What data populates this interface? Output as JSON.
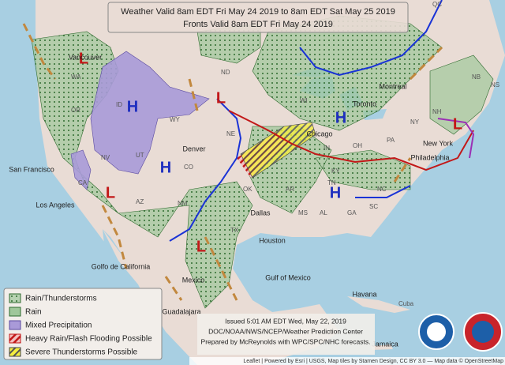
{
  "header": {
    "lines": [
      "Weather Valid 8am EDT Fri May 24 2019 to 8am EDT Sat May 25 2019",
      "Fronts Valid 8am EDT Fri May 24 2019"
    ]
  },
  "legend": {
    "items": [
      "Rain/Thunderstorms",
      "Rain",
      "Mixed Precipitation",
      "Heavy Rain/Flash Flooding Possible",
      "Severe Thunderstorms Possible"
    ]
  },
  "issued": {
    "lines": [
      "Issued 5:01 AM EDT Wed, May 22, 2019",
      "DOC/NOAA/NWS/NCEP/Weather Prediction Center",
      "Prepared by McReynolds with WPC/SPC/NHC forecasts."
    ]
  },
  "pressure_centers": [
    "L",
    "H",
    "L",
    "L",
    "H",
    "L",
    "L",
    "H",
    "H"
  ],
  "places": [
    "Vancouver",
    "WA",
    "OR",
    "ID",
    "NV",
    "CA",
    "UT",
    "San Francisco",
    "Los Angeles",
    "AZ",
    "NM",
    "Denver",
    "CO",
    "WY",
    "ND",
    "NE",
    "OK",
    "TX",
    "Dallas",
    "Houston",
    "AR",
    "MS",
    "AL",
    "GA",
    "TN",
    "KY",
    "IN",
    "OH",
    "WI",
    "Chicago",
    "Toronto",
    "Montreal",
    "PA",
    "NY",
    "New York",
    "Philadelphia",
    "NC",
    "SC",
    "NB",
    "NS",
    "NH",
    "QC",
    "Gulf of Mexico",
    "Golfo de California",
    "Mexico",
    "Guadalajara",
    "Havana",
    "Cuba",
    "Jamaica"
  ],
  "attribution": "Leaflet | Powered by Esri | USGS, Map tiles by Stamen Design, CC BY 3.0 — Map data © OpenStreetMap"
}
